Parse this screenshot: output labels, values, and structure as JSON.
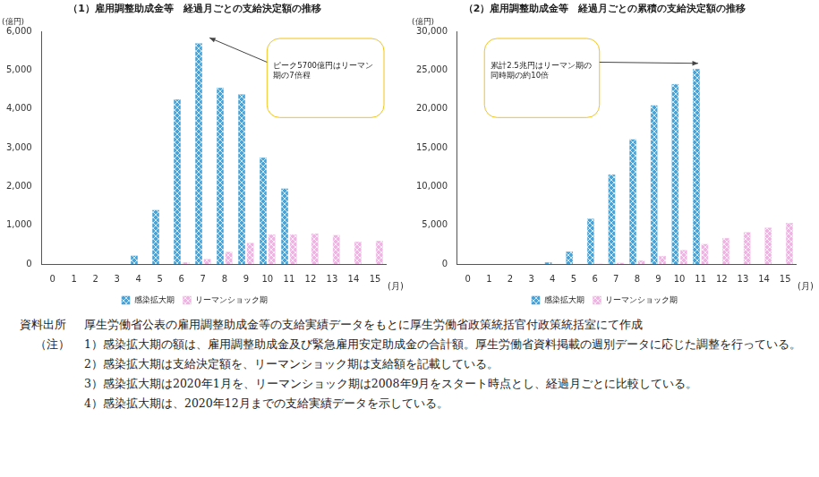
{
  "chart_data": [
    {
      "type": "bar",
      "title": "（1）雇用調整助成金等　経過月ごとの支給決定額の推移",
      "y_unit": "(億円)",
      "x_unit": "(月)",
      "annotation": "ピーク5700億円はリーマン期の7倍程",
      "categories": [
        "0",
        "1",
        "2",
        "3",
        "4",
        "5",
        "6",
        "7",
        "8",
        "9",
        "10",
        "11",
        "12",
        "13",
        "14",
        "15"
      ],
      "series": [
        {
          "name": "感染拡大期",
          "color": "#4aa3d8",
          "values": [
            0,
            0,
            0,
            0,
            220,
            1400,
            4250,
            5700,
            4550,
            4380,
            2750,
            1950,
            null,
            null,
            null,
            null
          ]
        },
        {
          "name": "リーマンショック期",
          "color": "#f0b4e4",
          "values": [
            0,
            0,
            0,
            0,
            0,
            0,
            50,
            130,
            320,
            550,
            770,
            770,
            790,
            750,
            580,
            600
          ]
        }
      ],
      "ylim": [
        0,
        6000
      ],
      "yticks": [
        0,
        {
          "value": 1000,
          "label": "1,000"
        },
        {
          "value": 2000,
          "label": "2,000"
        },
        {
          "value": 3000,
          "label": "3,000"
        },
        {
          "value": 4000,
          "label": "4,000"
        },
        {
          "value": 5000,
          "label": "5,000"
        },
        {
          "value": 6000,
          "label": "6,000"
        }
      ],
      "grid": false,
      "legend": "bottom"
    },
    {
      "type": "bar",
      "title": "（2）雇用調整助成金等　経過月ごとの累積の支給決定額の推移",
      "y_unit": "(億円)",
      "x_unit": "(月)",
      "annotation": "累計2.5兆円はリーマン期の同時期の約10倍",
      "categories": [
        "0",
        "1",
        "2",
        "3",
        "4",
        "5",
        "6",
        "7",
        "8",
        "9",
        "10",
        "11",
        "12",
        "13",
        "14",
        "15"
      ],
      "series": [
        {
          "name": "感染拡大期",
          "color": "#4aa3d8",
          "values": [
            0,
            0,
            0,
            0,
            220,
            1620,
            5870,
            11570,
            16120,
            20500,
            23250,
            25200,
            null,
            null,
            null,
            null
          ]
        },
        {
          "name": "リーマンショック期",
          "color": "#f0b4e4",
          "values": [
            0,
            0,
            0,
            0,
            0,
            0,
            50,
            180,
            500,
            1050,
            1820,
            2590,
            3380,
            4130,
            4710,
            5310
          ]
        }
      ],
      "ylim": [
        0,
        30000
      ],
      "yticks": [
        0,
        {
          "value": 5000,
          "label": "5,000"
        },
        {
          "value": 10000,
          "label": "10,000"
        },
        {
          "value": 15000,
          "label": "15,000"
        },
        {
          "value": 20000,
          "label": "20,000"
        },
        {
          "value": 25000,
          "label": "25,000"
        },
        {
          "value": 30000,
          "label": "30,000"
        }
      ],
      "grid": false,
      "legend": "bottom"
    }
  ],
  "notes": {
    "source_label": "資料出所",
    "source": "厚生労働省公表の雇用調整助成金等の支給実績データをもとに厚生労働省政策統括官付政策統括室にて作成",
    "note_label": "（注）",
    "items": [
      "1）感染拡大期の額は、雇用調整助成金及び緊急雇用安定助成金の合計額。厚生労働省資料掲載の週別データに応じた調整を行っている。",
      "2）感染拡大期は支給決定額を、リーマンショック期は支給額を記載している。",
      "3）感染拡大期は2020年1月を、リーマンショック期は2008年9月をスタート時点とし、経過月ごとに比較している。",
      "4）感染拡大期は、2020年12月までの支給実績データを示している。"
    ]
  }
}
